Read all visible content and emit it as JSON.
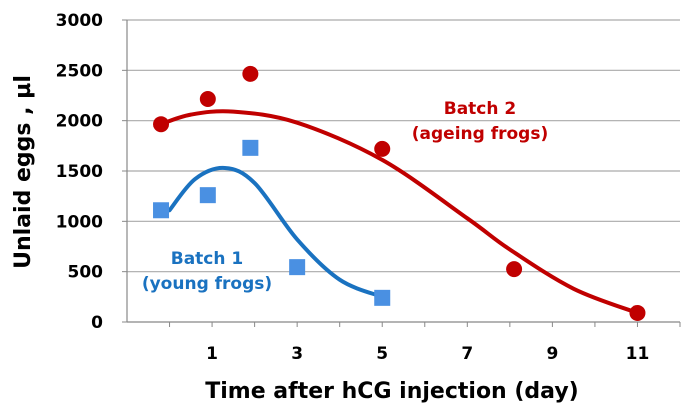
{
  "chart_data": {
    "type": "scatter",
    "title": "",
    "xlabel": "Time after hCG injection (day)",
    "ylabel": "Unlaid eggs , µl",
    "xlim": [
      -1,
      12
    ],
    "ylim": [
      0,
      3000
    ],
    "xticks": [
      1,
      3,
      5,
      7,
      9,
      11
    ],
    "yticks": [
      0,
      500,
      1000,
      1500,
      2000,
      2500,
      3000
    ],
    "grid": "horizontal",
    "series": [
      {
        "name": "Batch 1",
        "label_lines": [
          "Batch 1",
          "(young frogs)"
        ],
        "marker": "square",
        "marker_color": "#4a90e2",
        "line_color": "#1a72c0",
        "x": [
          -0.2,
          0.9,
          1.9,
          3.0,
          5.0
        ],
        "y": [
          1110,
          1260,
          1730,
          545,
          240
        ],
        "trend_x": [
          0,
          0.6,
          1.3,
          2.0,
          3.0,
          4.0,
          5.0
        ],
        "trend_y": [
          1110,
          1420,
          1530,
          1380,
          820,
          420,
          250
        ]
      },
      {
        "name": "Batch 2",
        "label_lines": [
          "Batch 2",
          "(ageing frogs)"
        ],
        "marker": "circle",
        "marker_color": "#c00000",
        "line_color": "#c00000",
        "x": [
          -0.2,
          0.9,
          1.9,
          5.0,
          8.1,
          11.0
        ],
        "y": [
          1965,
          2215,
          2465,
          1720,
          525,
          90
        ],
        "trend_x": [
          -0.2,
          0.5,
          1.5,
          3.0,
          5.0,
          7.0,
          8.0,
          9.5,
          11.0
        ],
        "trend_y": [
          1965,
          2060,
          2090,
          1980,
          1610,
          1030,
          720,
          330,
          90
        ]
      }
    ]
  }
}
